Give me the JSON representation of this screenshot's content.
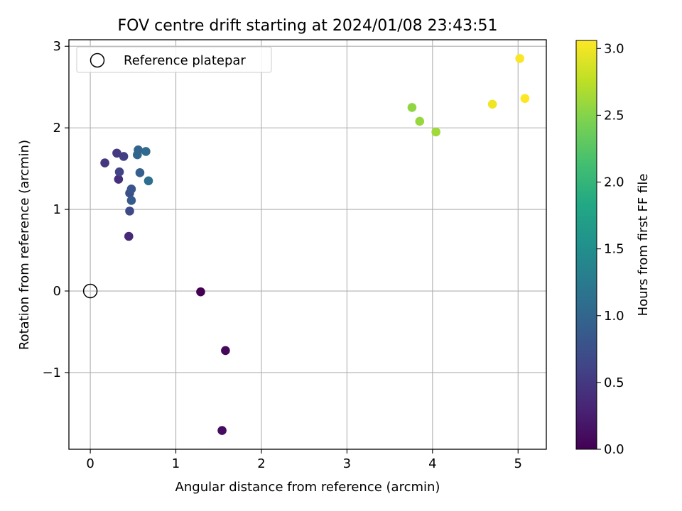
{
  "chart_data": {
    "type": "scatter",
    "title": "FOV centre drift starting at 2024/01/08 23:43:51",
    "xlabel": "Angular distance from reference (arcmin)",
    "ylabel": "Rotation from reference (arcmin)",
    "xlim": [
      -0.25,
      5.33
    ],
    "ylim": [
      -1.94,
      3.08
    ],
    "xticks": [
      0,
      1,
      2,
      3,
      4,
      5
    ],
    "xtick_labels": [
      "0",
      "1",
      "2",
      "3",
      "4",
      "5"
    ],
    "yticks": [
      -1,
      0,
      1,
      2,
      3
    ],
    "ytick_labels": [
      "−1",
      "0",
      "1",
      "2",
      "3"
    ],
    "grid": true,
    "legend": {
      "position": "top-left",
      "label": "Reference platepar"
    },
    "reference_point": {
      "x": 0,
      "y": 0
    },
    "colorbar": {
      "label": "Hours from first FF file",
      "colormap": "viridis",
      "range": [
        0.0,
        3.06
      ],
      "ticks": [
        0.0,
        0.5,
        1.0,
        1.5,
        2.0,
        2.5,
        3.0
      ],
      "tick_labels": [
        "0.0",
        "0.5",
        "1.0",
        "1.5",
        "2.0",
        "2.5",
        "3.0"
      ]
    },
    "points": [
      {
        "x": 1.29,
        "y": -0.01,
        "hours": 0.0
      },
      {
        "x": 1.58,
        "y": -0.73,
        "hours": 0.06
      },
      {
        "x": 1.54,
        "y": -1.71,
        "hours": 0.1
      },
      {
        "x": 0.45,
        "y": 0.67,
        "hours": 0.35
      },
      {
        "x": 0.33,
        "y": 1.37,
        "hours": 0.42
      },
      {
        "x": 0.17,
        "y": 1.57,
        "hours": 0.48
      },
      {
        "x": 0.31,
        "y": 1.69,
        "hours": 0.52
      },
      {
        "x": 0.39,
        "y": 1.65,
        "hours": 0.56
      },
      {
        "x": 0.34,
        "y": 1.46,
        "hours": 0.6
      },
      {
        "x": 0.46,
        "y": 0.98,
        "hours": 0.68
      },
      {
        "x": 0.46,
        "y": 1.2,
        "hours": 0.74
      },
      {
        "x": 0.48,
        "y": 1.25,
        "hours": 0.8
      },
      {
        "x": 0.48,
        "y": 1.11,
        "hours": 0.86
      },
      {
        "x": 0.58,
        "y": 1.45,
        "hours": 0.92
      },
      {
        "x": 0.56,
        "y": 1.73,
        "hours": 0.98
      },
      {
        "x": 0.55,
        "y": 1.67,
        "hours": 1.02
      },
      {
        "x": 0.65,
        "y": 1.71,
        "hours": 1.06
      },
      {
        "x": 0.68,
        "y": 1.35,
        "hours": 1.1
      },
      {
        "x": 3.76,
        "y": 2.25,
        "hours": 2.55
      },
      {
        "x": 3.85,
        "y": 2.08,
        "hours": 2.58
      },
      {
        "x": 4.04,
        "y": 1.95,
        "hours": 2.62
      },
      {
        "x": 4.7,
        "y": 2.29,
        "hours": 3.0
      },
      {
        "x": 5.02,
        "y": 2.85,
        "hours": 3.04
      },
      {
        "x": 5.08,
        "y": 2.36,
        "hours": 3.06
      }
    ]
  }
}
